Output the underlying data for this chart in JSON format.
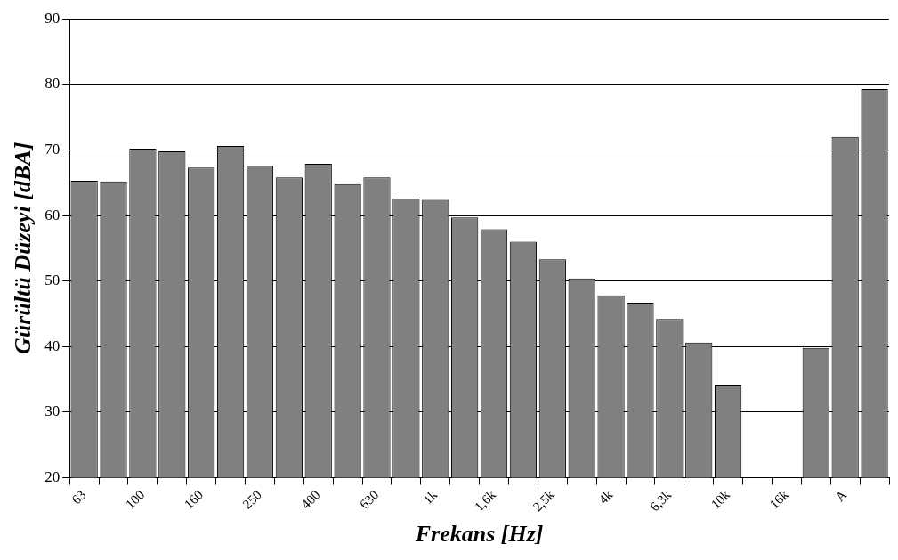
{
  "chart_data": {
    "type": "bar",
    "xlabel": "Frekans [Hz]",
    "ylabel": "Gürültü Düzeyi [dBA]",
    "categories": [
      "63",
      null,
      "100",
      null,
      "160",
      null,
      "250",
      null,
      "400",
      null,
      "630",
      null,
      "1k",
      null,
      "1,6k",
      null,
      "2,5k",
      null,
      "4k",
      null,
      "6,3k",
      null,
      "10k",
      null,
      "16k",
      null,
      "A",
      null
    ],
    "values": [
      65.3,
      65.2,
      70.2,
      69.8,
      67.3,
      70.6,
      67.6,
      65.8,
      67.9,
      64.8,
      65.8,
      62.6,
      62.4,
      59.7,
      57.9,
      56.0,
      53.3,
      50.4,
      47.8,
      46.7,
      44.2,
      40.6,
      34.2,
      null,
      null,
      39.8,
      72.0,
      79.3
    ],
    "color": "#808080",
    "ylim": [
      20,
      90
    ],
    "yticks": [
      20,
      30,
      40,
      50,
      60,
      70,
      80,
      90
    ],
    "grid": "y"
  }
}
